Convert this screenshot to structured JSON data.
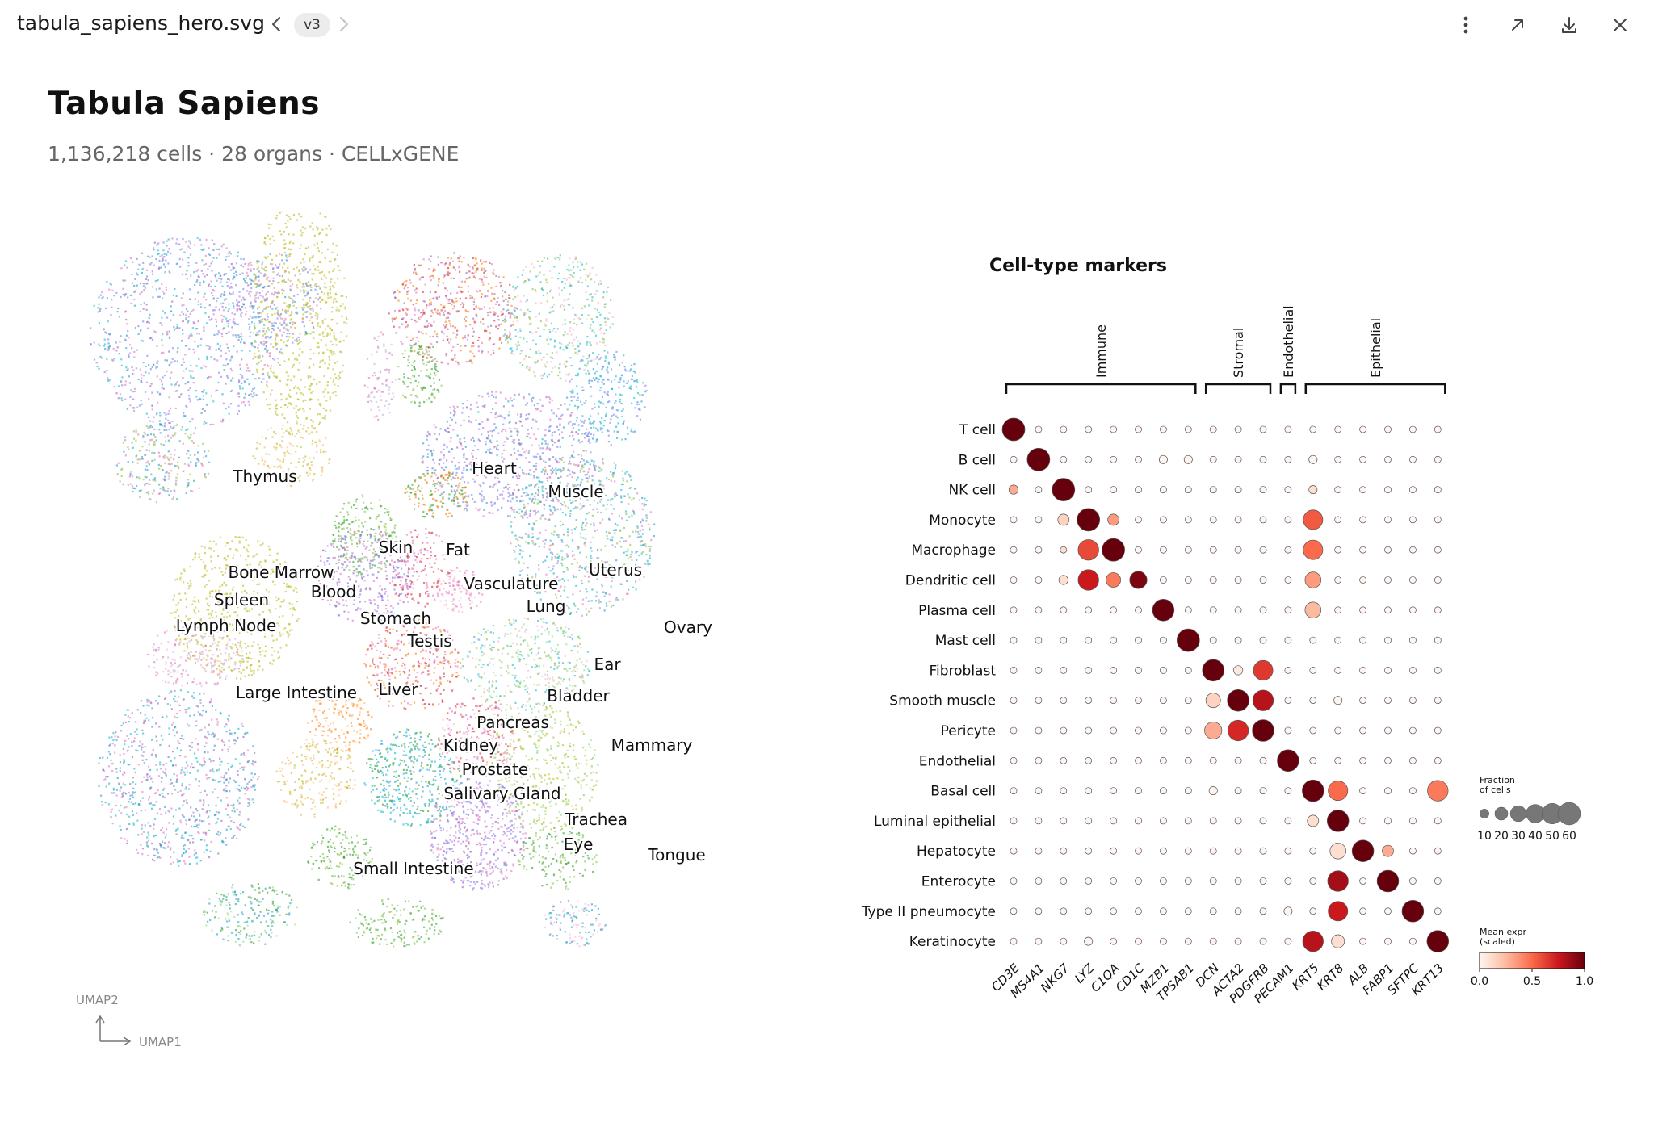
{
  "toolbar": {
    "file_name": "tabula_sapiens_hero.svg",
    "version": "v3",
    "icons": [
      "more-vertical-icon",
      "open-external-icon",
      "download-icon",
      "close-icon"
    ]
  },
  "header": {
    "title": "Tabula Sapiens",
    "subtitle": "1,136,218 cells · 28 organs · CELLxGENE"
  },
  "umap": {
    "axis_x": "UMAP1",
    "axis_y": "UMAP2",
    "organ_labels": [
      "Thymus",
      "Heart",
      "Muscle",
      "Skin",
      "Fat",
      "Bone Marrow",
      "Blood",
      "Spleen",
      "Lymph Node",
      "Uterus",
      "Vasculature",
      "Lung",
      "Stomach",
      "Testis",
      "Ovary",
      "Ear",
      "Large Intestine",
      "Liver",
      "Bladder",
      "Pancreas",
      "Mammary",
      "Kidney",
      "Prostate",
      "Salivary Gland",
      "Trachea",
      "Eye",
      "Tongue",
      "Small Intestine"
    ]
  },
  "chart_data": {
    "type": "dotplot",
    "title": "Cell-type markers",
    "genes": [
      "CD3E",
      "MS4A1",
      "NKG7",
      "LYZ",
      "C1QA",
      "CD1C",
      "MZB1",
      "TPSAB1",
      "DCN",
      "ACTA2",
      "PDGFRB",
      "PECAM1",
      "KRT5",
      "KRT8",
      "ALB",
      "FABP1",
      "SFTPC",
      "KRT13"
    ],
    "groups": [
      {
        "name": "Immune",
        "start": 0,
        "end": 7
      },
      {
        "name": "Stromal",
        "start": 8,
        "end": 10
      },
      {
        "name": "Endothelial",
        "start": 11,
        "end": 11
      },
      {
        "name": "Epithelial",
        "start": 12,
        "end": 17
      }
    ],
    "cell_types": [
      "T cell",
      "B cell",
      "NK cell",
      "Monocyte",
      "Macrophage",
      "Dendritic cell",
      "Plasma cell",
      "Mast cell",
      "Fibroblast",
      "Smooth muscle",
      "Pericyte",
      "Endothelial",
      "Basal cell",
      "Luminal epithelial",
      "Hepatocyte",
      "Enterocyte",
      "Type II pneumocyte",
      "Keratinocyte"
    ],
    "fraction": [
      [
        60,
        5,
        5,
        5,
        5,
        5,
        5,
        5,
        5,
        5,
        5,
        5,
        5,
        5,
        5,
        5,
        5,
        5
      ],
      [
        5,
        60,
        5,
        5,
        5,
        5,
        8,
        8,
        5,
        5,
        5,
        5,
        8,
        5,
        5,
        5,
        5,
        5
      ],
      [
        10,
        5,
        60,
        5,
        5,
        5,
        5,
        5,
        5,
        5,
        5,
        5,
        8,
        5,
        5,
        5,
        5,
        5
      ],
      [
        5,
        5,
        15,
        60,
        15,
        5,
        5,
        5,
        5,
        5,
        5,
        5,
        45,
        5,
        5,
        5,
        5,
        5
      ],
      [
        5,
        5,
        5,
        50,
        60,
        5,
        5,
        5,
        5,
        5,
        5,
        5,
        45,
        5,
        5,
        5,
        5,
        5
      ],
      [
        5,
        5,
        10,
        50,
        25,
        35,
        5,
        5,
        5,
        5,
        5,
        5,
        30,
        5,
        5,
        5,
        5,
        5
      ],
      [
        5,
        5,
        5,
        5,
        5,
        5,
        55,
        5,
        5,
        5,
        5,
        5,
        30,
        5,
        5,
        5,
        5,
        5
      ],
      [
        5,
        5,
        5,
        5,
        5,
        5,
        5,
        60,
        5,
        5,
        5,
        5,
        5,
        5,
        5,
        5,
        5,
        5
      ],
      [
        5,
        5,
        5,
        5,
        5,
        5,
        5,
        5,
        55,
        10,
        45,
        5,
        5,
        5,
        5,
        5,
        5,
        5
      ],
      [
        5,
        5,
        5,
        5,
        5,
        5,
        5,
        5,
        25,
        55,
        50,
        5,
        5,
        8,
        5,
        5,
        5,
        5
      ],
      [
        5,
        5,
        5,
        5,
        5,
        5,
        5,
        5,
        35,
        50,
        55,
        5,
        5,
        5,
        5,
        5,
        5,
        5
      ],
      [
        5,
        5,
        5,
        5,
        5,
        5,
        5,
        5,
        5,
        5,
        5,
        55,
        5,
        5,
        5,
        5,
        5,
        5
      ],
      [
        5,
        5,
        5,
        5,
        5,
        5,
        5,
        5,
        8,
        5,
        5,
        5,
        55,
        45,
        5,
        5,
        5,
        50
      ],
      [
        5,
        5,
        5,
        5,
        5,
        5,
        5,
        5,
        5,
        5,
        5,
        5,
        15,
        55,
        5,
        5,
        5,
        5
      ],
      [
        5,
        5,
        5,
        5,
        5,
        5,
        5,
        5,
        5,
        5,
        5,
        5,
        5,
        30,
        55,
        15,
        5,
        5
      ],
      [
        5,
        5,
        5,
        5,
        5,
        5,
        5,
        5,
        5,
        5,
        5,
        5,
        5,
        50,
        5,
        55,
        5,
        5
      ],
      [
        5,
        5,
        5,
        5,
        5,
        5,
        5,
        5,
        5,
        5,
        5,
        8,
        5,
        45,
        5,
        5,
        55,
        5
      ],
      [
        5,
        5,
        5,
        8,
        5,
        5,
        5,
        5,
        5,
        5,
        5,
        5,
        50,
        20,
        5,
        5,
        5,
        55
      ]
    ],
    "expression": [
      [
        1.0,
        0,
        0,
        0,
        0,
        0,
        0,
        0,
        0,
        0,
        0,
        0,
        0,
        0,
        0,
        0,
        0,
        0
      ],
      [
        0,
        1.0,
        0,
        0,
        0,
        0,
        0,
        0,
        0,
        0,
        0,
        0,
        0,
        0,
        0,
        0,
        0,
        0
      ],
      [
        0.3,
        0,
        1.0,
        0,
        0,
        0,
        0,
        0,
        0,
        0,
        0,
        0,
        0.1,
        0,
        0,
        0,
        0,
        0
      ],
      [
        0,
        0,
        0.15,
        1.0,
        0.35,
        0,
        0,
        0,
        0,
        0,
        0,
        0,
        0.55,
        0,
        0,
        0,
        0,
        0
      ],
      [
        0,
        0,
        0.1,
        0.6,
        1.0,
        0,
        0,
        0,
        0,
        0,
        0,
        0,
        0.5,
        0,
        0,
        0,
        0,
        0
      ],
      [
        0,
        0,
        0.1,
        0.75,
        0.45,
        0.95,
        0,
        0,
        0,
        0,
        0,
        0,
        0.35,
        0,
        0,
        0,
        0,
        0
      ],
      [
        0,
        0,
        0,
        0,
        0,
        0,
        1.0,
        0,
        0,
        0,
        0,
        0,
        0.25,
        0,
        0,
        0,
        0,
        0
      ],
      [
        0,
        0,
        0,
        0,
        0,
        0,
        0,
        1.0,
        0,
        0,
        0,
        0,
        0,
        0,
        0,
        0,
        0,
        0
      ],
      [
        0,
        0,
        0,
        0,
        0,
        0,
        0,
        0,
        1.0,
        0.05,
        0.65,
        0,
        0,
        0,
        0,
        0,
        0,
        0
      ],
      [
        0,
        0,
        0,
        0,
        0,
        0,
        0,
        0,
        0.15,
        1.0,
        0.8,
        0,
        0,
        0,
        0,
        0,
        0,
        0
      ],
      [
        0,
        0,
        0,
        0,
        0,
        0,
        0,
        0,
        0.3,
        0.7,
        1.0,
        0,
        0,
        0,
        0,
        0,
        0,
        0
      ],
      [
        0,
        0,
        0,
        0,
        0,
        0,
        0,
        0,
        0,
        0,
        0,
        1.0,
        0,
        0,
        0,
        0,
        0,
        0
      ],
      [
        0,
        0,
        0,
        0,
        0,
        0,
        0,
        0,
        0,
        0,
        0,
        0,
        1.0,
        0.5,
        0,
        0,
        0,
        0.45
      ],
      [
        0,
        0,
        0,
        0,
        0,
        0,
        0,
        0,
        0,
        0,
        0,
        0,
        0.1,
        1.0,
        0,
        0,
        0,
        0
      ],
      [
        0,
        0,
        0,
        0,
        0,
        0,
        0,
        0,
        0,
        0,
        0,
        0,
        0,
        0.1,
        1.0,
        0.3,
        0,
        0
      ],
      [
        0,
        0,
        0,
        0,
        0,
        0,
        0,
        0,
        0,
        0,
        0,
        0,
        0,
        0.85,
        0,
        1.0,
        0,
        0
      ],
      [
        0,
        0,
        0,
        0,
        0,
        0,
        0,
        0,
        0,
        0,
        0,
        0,
        0,
        0.75,
        0,
        0,
        1.0,
        0
      ],
      [
        0,
        0,
        0,
        0,
        0,
        0,
        0,
        0,
        0,
        0,
        0,
        0,
        0.8,
        0.1,
        0,
        0,
        0,
        1.0
      ]
    ],
    "size_legend": {
      "title_line1": "Fraction",
      "title_line2": "of cells",
      "values": [
        10,
        20,
        30,
        40,
        50,
        60
      ]
    },
    "color_legend": {
      "title_line1": "Mean expr",
      "title_line2": "(scaled)",
      "ticks": [
        "0.0",
        "0.5",
        "1.0"
      ],
      "min": 0.0,
      "max": 1.0,
      "colors": [
        "#fff5f0",
        "#fcbba1",
        "#fb6a4a",
        "#cb181d",
        "#67000d"
      ]
    }
  }
}
